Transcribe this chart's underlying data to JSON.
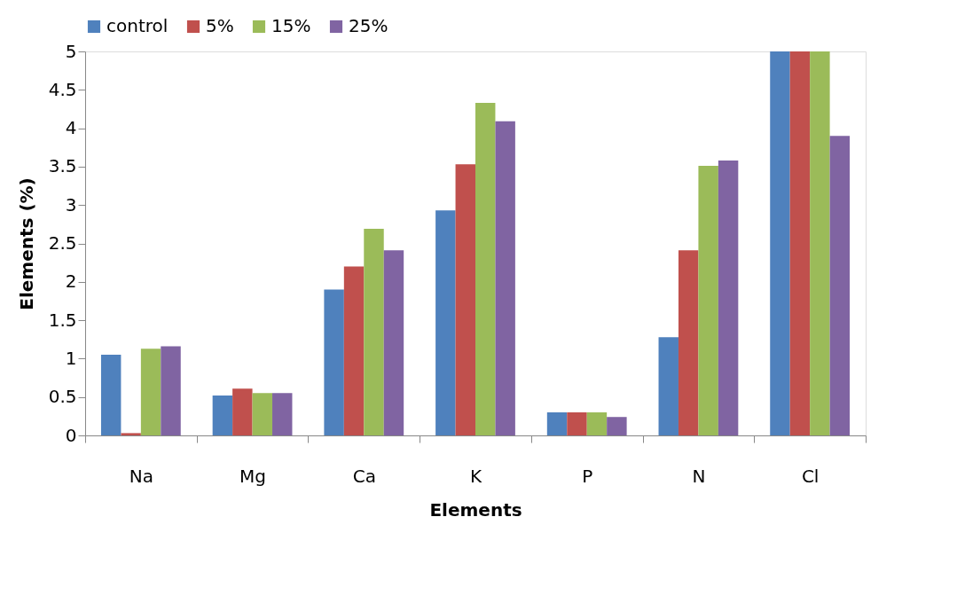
{
  "chart_data": {
    "type": "bar",
    "xlabel": "Elements",
    "ylabel": "Elements (%)",
    "categories": [
      "Na",
      "Mg",
      "Ca",
      "K",
      "P",
      "N",
      "Cl"
    ],
    "series": [
      {
        "name": "control",
        "color": "#4f81bd",
        "values": [
          1.05,
          0.52,
          1.9,
          2.93,
          0.3,
          1.28,
          5
        ]
      },
      {
        "name": "5%",
        "color": "#c0504d",
        "values": [
          0.03,
          0.61,
          2.2,
          3.53,
          0.3,
          2.41,
          5
        ]
      },
      {
        "name": "15%",
        "color": "#9bbb59",
        "values": [
          1.13,
          0.55,
          2.69,
          4.33,
          0.3,
          3.51,
          5
        ]
      },
      {
        "name": "25%",
        "color": "#8064a2",
        "values": [
          1.16,
          0.55,
          2.41,
          4.09,
          0.24,
          3.58,
          3.9
        ]
      }
    ],
    "ylim": [
      0,
      5
    ],
    "yticks": [
      0,
      0.5,
      1,
      1.5,
      2,
      2.5,
      3,
      3.5,
      4,
      4.5,
      5
    ],
    "grid": false,
    "legend": "top"
  }
}
